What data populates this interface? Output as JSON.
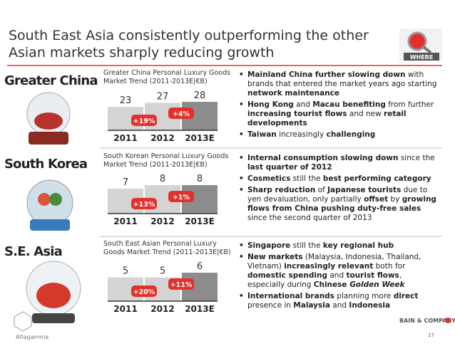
{
  "title": [
    "South East Asia consistently outperforming the other",
    "Asian markets sharply reducing growth"
  ],
  "icon_label": "WHERE",
  "sections": [
    {
      "region": "Greater China",
      "chart": {
        "type": "bar",
        "title": "Greater China Personal Luxury Goods Market Trend (2011-2013E|€B)",
        "categories": [
          "2011",
          "2012",
          "2013E"
        ],
        "values": [
          23,
          27,
          28
        ],
        "colors": [
          "#d4d4d4",
          "#d4d4d4",
          "#8c8c8c"
        ],
        "growth": [
          {
            "value": 19,
            "label": "+19%"
          },
          {
            "value": 4,
            "label": "+4%"
          }
        ],
        "growth_color": "#e2312d"
      },
      "bullets": [
        [
          {
            "t": "Mainland China further slowing down",
            "b": true
          },
          {
            "t": " with brands that entered the market years ago starting "
          },
          {
            "t": "network maintenance",
            "b": true
          }
        ],
        [
          {
            "t": "Hong Kong",
            "b": true
          },
          {
            "t": " and "
          },
          {
            "t": "Macau benefiting",
            "b": true
          },
          {
            "t": " from further "
          },
          {
            "t": "increasing tourist flows",
            "b": true
          },
          {
            "t": " and new "
          },
          {
            "t": "retail developments",
            "b": true
          }
        ],
        [
          {
            "t": "Taiwan",
            "b": true
          },
          {
            "t": " increasingly "
          },
          {
            "t": "challenging",
            "b": true
          }
        ]
      ]
    },
    {
      "region": "South Korea",
      "chart": {
        "type": "bar",
        "title": "South Korean Personal Luxury Goods Market Trend (2011-2013E|€B)",
        "categories": [
          "2011",
          "2012",
          "2013E"
        ],
        "values": [
          7,
          8,
          8
        ],
        "colors": [
          "#d4d4d4",
          "#d4d4d4",
          "#8c8c8c"
        ],
        "growth": [
          {
            "value": 13,
            "label": "+13%"
          },
          {
            "value": 1,
            "label": "+1%"
          }
        ],
        "growth_color": "#e2312d"
      },
      "bullets": [
        [
          {
            "t": "Internal consumption slowing down",
            "b": true
          },
          {
            "t": " since the "
          },
          {
            "t": "last quarter of 2012",
            "b": true
          }
        ],
        [
          {
            "t": "Cosmetics",
            "b": true
          },
          {
            "t": " still the "
          },
          {
            "t": "best performing category",
            "b": true
          }
        ],
        [
          {
            "t": "Sharp reduction",
            "b": true
          },
          {
            "t": " of "
          },
          {
            "t": "Japanese tourists",
            "b": true
          },
          {
            "t": " due to yen devaluation, only partially "
          },
          {
            "t": "offset",
            "b": true
          },
          {
            "t": " by "
          },
          {
            "t": "growing flows from China pushing duty-free sales",
            "b": true
          },
          {
            "t": " since the second quarter of 2013"
          }
        ]
      ]
    },
    {
      "region": "S.E. Asia",
      "chart": {
        "type": "bar",
        "title": "South East Asian Personal Luxury Goods Market Trend (2011-2013E|€B)",
        "categories": [
          "2011",
          "2012",
          "2013E"
        ],
        "values": [
          5,
          5,
          6
        ],
        "colors": [
          "#d4d4d4",
          "#d4d4d4",
          "#8c8c8c"
        ],
        "growth": [
          {
            "value": 20,
            "label": "+20%"
          },
          {
            "value": 11,
            "label": "+11%"
          }
        ],
        "growth_color": "#e2312d"
      },
      "bullets": [
        [
          {
            "t": "Singapore",
            "b": true
          },
          {
            "t": " still the "
          },
          {
            "t": "key regional hub",
            "b": true
          }
        ],
        [
          {
            "t": "New markets",
            "b": true
          },
          {
            "t": " (Malaysia, Indonesia, Thailand, Vietnam) "
          },
          {
            "t": "increasingly relevant",
            "b": true
          },
          {
            "t": " both for "
          },
          {
            "t": "domestic spending",
            "b": true
          },
          {
            "t": " and "
          },
          {
            "t": "tourist flows",
            "b": true
          },
          {
            "t": ", especially during "
          },
          {
            "t": "Chinese ",
            "b": true
          },
          {
            "t": "Golden Week",
            "b": true,
            "i": true
          }
        ],
        [
          {
            "t": "International brands",
            "b": true
          },
          {
            "t": " planning more "
          },
          {
            "t": "direct",
            "b": true
          },
          {
            "t": " presence in "
          },
          {
            "t": "Malaysia",
            "b": true
          },
          {
            "t": " and "
          },
          {
            "t": "Indonesia",
            "b": true
          }
        ]
      ]
    }
  ],
  "footer": {
    "logo_left": "Altagamma",
    "company": "BAIN & COMPANY",
    "page": "17"
  }
}
